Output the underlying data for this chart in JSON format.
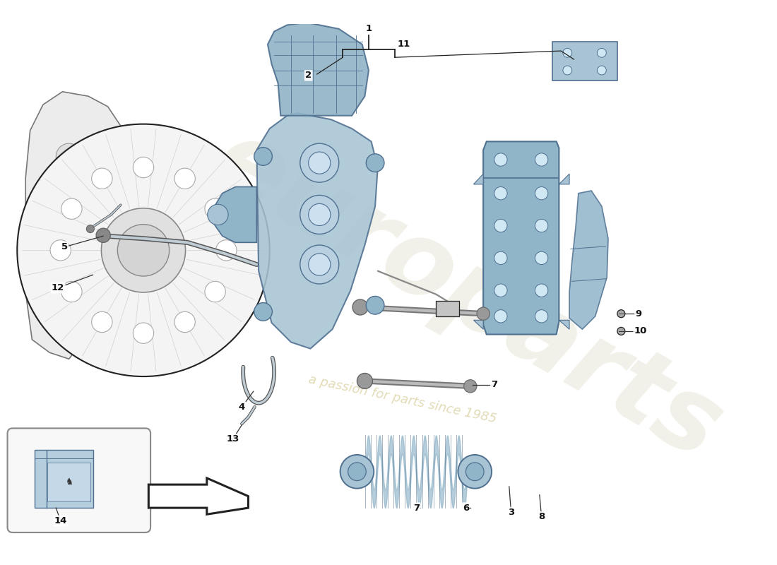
{
  "bg_color": "#ffffff",
  "blue_light": "#a8c4d4",
  "blue_mid": "#90b4c8",
  "blue_dark": "#6890a8",
  "outline": "#507090",
  "line": "#222222",
  "text_color": "#111111"
}
